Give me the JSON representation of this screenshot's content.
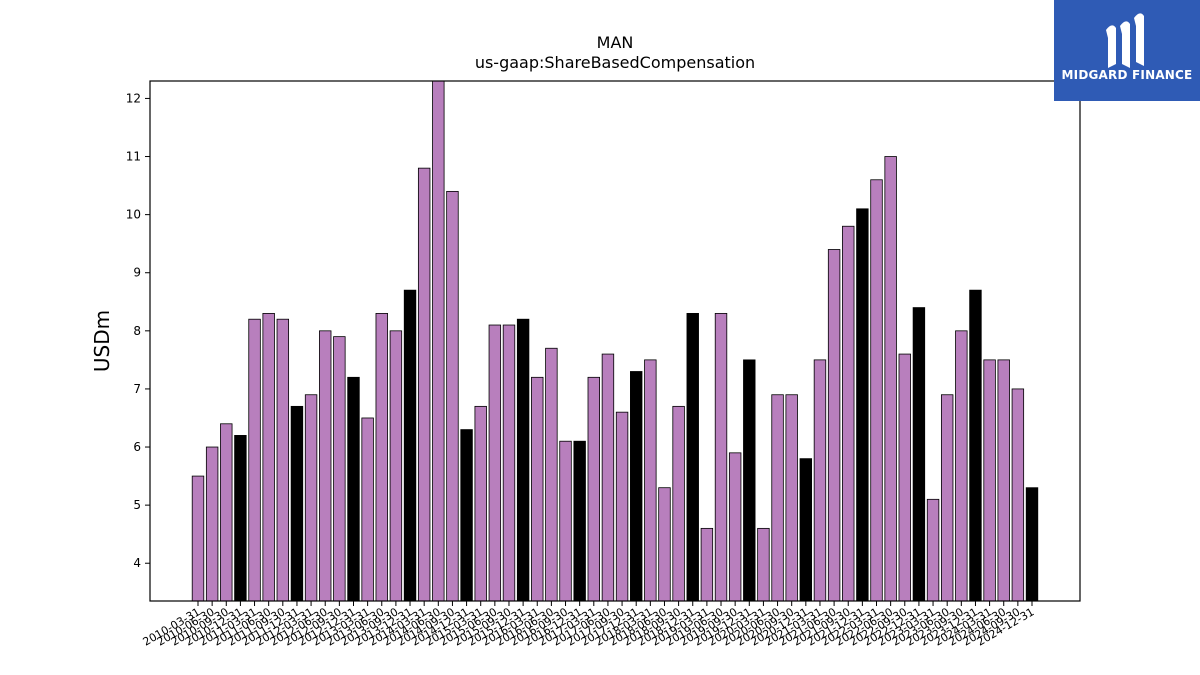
{
  "chart_data": {
    "type": "bar",
    "title": "MAN",
    "subtitle": "us-gaap:ShareBasedCompensation",
    "xlabel": "",
    "ylabel": "USDm",
    "ylim": [
      3.35,
      12.3
    ],
    "yticks": [
      4,
      5,
      6,
      7,
      8,
      9,
      10,
      11,
      12
    ],
    "grid": false,
    "colors": {
      "quarter": "#b87fbd",
      "annual": "#000000",
      "edge": "#000000"
    },
    "bars": [
      {
        "x": "2010-03-31",
        "value": 5.5,
        "fill": "quarter"
      },
      {
        "x": "2010-06-30",
        "value": 6.0,
        "fill": "quarter"
      },
      {
        "x": "2010-09-30",
        "value": 6.4,
        "fill": "quarter"
      },
      {
        "x": "2010-12-31",
        "value": 6.2,
        "fill": "annual"
      },
      {
        "x": "2011-03-31",
        "value": 8.2,
        "fill": "quarter"
      },
      {
        "x": "2011-06-30",
        "value": 8.3,
        "fill": "quarter"
      },
      {
        "x": "2011-09-30",
        "value": 8.2,
        "fill": "quarter"
      },
      {
        "x": "2011-12-31",
        "value": 6.7,
        "fill": "annual"
      },
      {
        "x": "2012-03-31",
        "value": 6.9,
        "fill": "quarter"
      },
      {
        "x": "2012-06-30",
        "value": 8.0,
        "fill": "quarter"
      },
      {
        "x": "2012-09-30",
        "value": 7.9,
        "fill": "quarter"
      },
      {
        "x": "2012-12-31",
        "value": 7.2,
        "fill": "annual"
      },
      {
        "x": "2013-03-31",
        "value": 6.5,
        "fill": "quarter"
      },
      {
        "x": "2013-06-30",
        "value": 8.3,
        "fill": "quarter"
      },
      {
        "x": "2013-09-30",
        "value": 8.0,
        "fill": "quarter"
      },
      {
        "x": "2013-12-31",
        "value": 8.7,
        "fill": "annual"
      },
      {
        "x": "2014-03-31",
        "value": 10.8,
        "fill": "quarter"
      },
      {
        "x": "2014-06-30",
        "value": 12.3,
        "fill": "quarter"
      },
      {
        "x": "2014-09-30",
        "value": 10.4,
        "fill": "quarter"
      },
      {
        "x": "2014-12-31",
        "value": 6.3,
        "fill": "annual"
      },
      {
        "x": "2015-03-31",
        "value": 6.7,
        "fill": "quarter"
      },
      {
        "x": "2015-06-30",
        "value": 8.1,
        "fill": "quarter"
      },
      {
        "x": "2015-09-30",
        "value": 8.1,
        "fill": "quarter"
      },
      {
        "x": "2015-12-31",
        "value": 8.2,
        "fill": "annual"
      },
      {
        "x": "2016-03-31",
        "value": 7.2,
        "fill": "quarter"
      },
      {
        "x": "2016-06-30",
        "value": 7.7,
        "fill": "quarter"
      },
      {
        "x": "2016-09-30",
        "value": 6.1,
        "fill": "quarter"
      },
      {
        "x": "2016-12-31",
        "value": 6.1,
        "fill": "annual"
      },
      {
        "x": "2017-03-31",
        "value": 7.2,
        "fill": "quarter"
      },
      {
        "x": "2017-06-30",
        "value": 7.6,
        "fill": "quarter"
      },
      {
        "x": "2017-09-30",
        "value": 6.6,
        "fill": "quarter"
      },
      {
        "x": "2017-12-31",
        "value": 7.3,
        "fill": "annual"
      },
      {
        "x": "2018-03-31",
        "value": 7.5,
        "fill": "quarter"
      },
      {
        "x": "2018-06-30",
        "value": 5.3,
        "fill": "quarter"
      },
      {
        "x": "2018-09-30",
        "value": 6.7,
        "fill": "quarter"
      },
      {
        "x": "2018-12-31",
        "value": 8.3,
        "fill": "annual"
      },
      {
        "x": "2019-03-31",
        "value": 4.6,
        "fill": "quarter"
      },
      {
        "x": "2019-06-30",
        "value": 8.3,
        "fill": "quarter"
      },
      {
        "x": "2019-09-30",
        "value": 5.9,
        "fill": "quarter"
      },
      {
        "x": "2019-12-31",
        "value": 7.5,
        "fill": "annual"
      },
      {
        "x": "2020-03-31",
        "value": 4.6,
        "fill": "quarter"
      },
      {
        "x": "2020-06-30",
        "value": 6.9,
        "fill": "quarter"
      },
      {
        "x": "2020-09-30",
        "value": 6.9,
        "fill": "quarter"
      },
      {
        "x": "2020-12-31",
        "value": 5.8,
        "fill": "annual"
      },
      {
        "x": "2021-03-31",
        "value": 7.5,
        "fill": "quarter"
      },
      {
        "x": "2021-06-30",
        "value": 9.4,
        "fill": "quarter"
      },
      {
        "x": "2021-09-30",
        "value": 9.8,
        "fill": "quarter"
      },
      {
        "x": "2021-12-31",
        "value": 10.1,
        "fill": "annual"
      },
      {
        "x": "2022-03-31",
        "value": 10.6,
        "fill": "quarter"
      },
      {
        "x": "2022-06-30",
        "value": 11.0,
        "fill": "quarter"
      },
      {
        "x": "2022-09-30",
        "value": 7.6,
        "fill": "quarter"
      },
      {
        "x": "2022-12-31",
        "value": 8.4,
        "fill": "annual"
      },
      {
        "x": "2023-03-31",
        "value": 5.1,
        "fill": "quarter"
      },
      {
        "x": "2023-06-30",
        "value": 6.9,
        "fill": "quarter"
      },
      {
        "x": "2023-09-30",
        "value": 8.0,
        "fill": "quarter"
      },
      {
        "x": "2023-12-31",
        "value": 8.7,
        "fill": "annual"
      },
      {
        "x": "2024-03-31",
        "value": 7.5,
        "fill": "quarter"
      },
      {
        "x": "2024-06-30",
        "value": 7.5,
        "fill": "quarter"
      },
      {
        "x": "2024-09-30",
        "value": 7.0,
        "fill": "quarter"
      },
      {
        "x": "2024-12-31",
        "value": 5.3,
        "fill": "annual"
      }
    ]
  },
  "logo": {
    "text": "MIDGARD FINANCE",
    "background": "#2f5bb5"
  }
}
